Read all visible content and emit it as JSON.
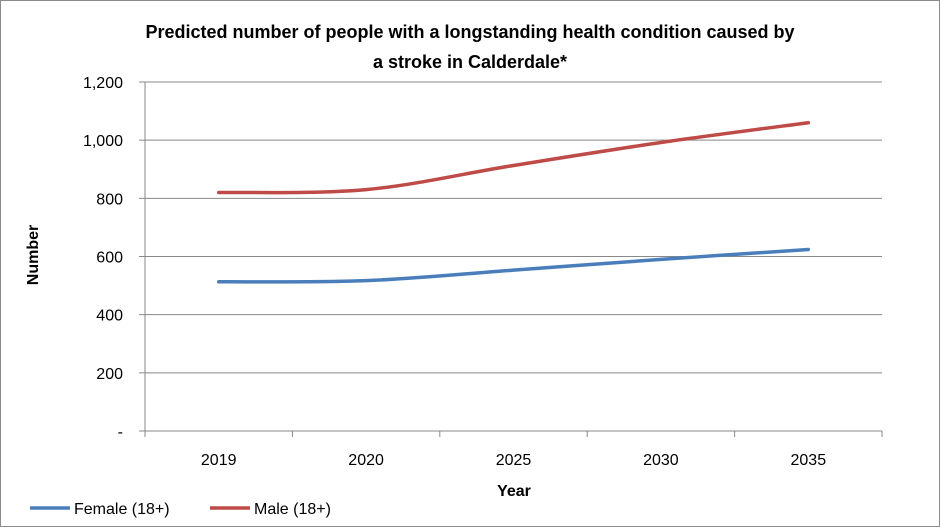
{
  "chart_data": {
    "type": "line",
    "title_line1": "Predicted number of people with a longstanding health condition caused by",
    "title_line2": "a stroke in Calderdale*",
    "xlabel": "Year",
    "ylabel": "Number",
    "categories": [
      "2019",
      "2020",
      "2025",
      "2030",
      "2035"
    ],
    "ylim": [
      0,
      1200
    ],
    "yticks": [
      {
        "value": 0,
        "label": "-"
      },
      {
        "value": 200,
        "label": "200"
      },
      {
        "value": 400,
        "label": "400"
      },
      {
        "value": 600,
        "label": "600"
      },
      {
        "value": 800,
        "label": "800"
      },
      {
        "value": 1000,
        "label": "1,000"
      },
      {
        "value": 1200,
        "label": "1,200"
      }
    ],
    "grid": true,
    "legend_position": "bottom-left",
    "series": [
      {
        "name": "Female (18+)",
        "color": "#4a7ebb",
        "values": [
          513,
          517,
          553,
          590,
          624
        ]
      },
      {
        "name": "Male (18+)",
        "color": "#be4b48",
        "values": [
          820,
          830,
          913,
          992,
          1060
        ]
      }
    ]
  }
}
